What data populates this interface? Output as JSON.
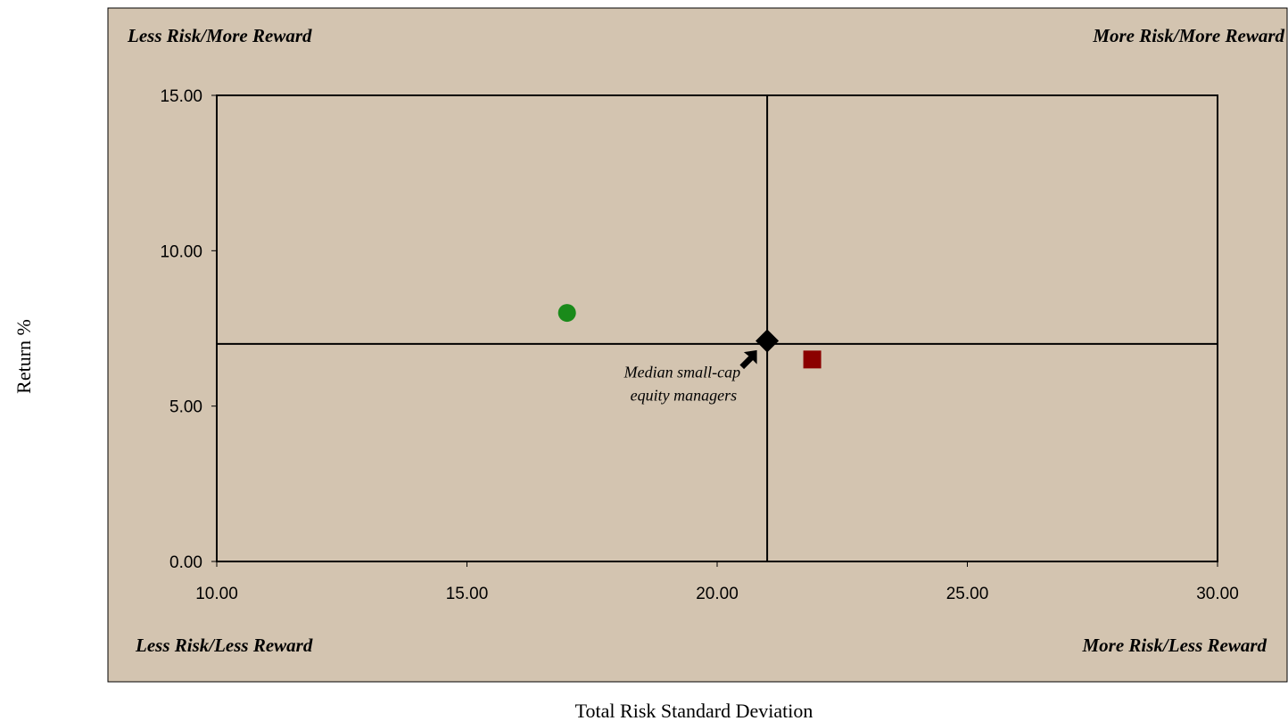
{
  "colors": {
    "background": "#d3c4b0",
    "green_point": "#1a8a1a",
    "red_point": "#8b0000",
    "median_point": "#000000"
  },
  "chart_data": {
    "type": "scatter",
    "xlabel": "Total Risk Standard Deviation",
    "ylabel": "Return %",
    "xlim": [
      10,
      30
    ],
    "ylim": [
      0,
      15
    ],
    "x_ticks": [
      "10.00",
      "15.00",
      "20.00",
      "25.00",
      "30.00"
    ],
    "y_ticks": [
      "0.00",
      "5.00",
      "10.00",
      "15.00"
    ],
    "grid": false,
    "quadrant_lines": {
      "x": 21,
      "y": 7.0
    },
    "quadrant_labels": {
      "top_left": "Less Risk/More Reward",
      "top_right": "More Risk/More Reward",
      "bottom_left": "Less Risk/Less Reward",
      "bottom_right": "More Risk/Less Reward"
    },
    "points": [
      {
        "x": 17.0,
        "y": 8.0,
        "marker": "circle",
        "color": "#1a8a1a"
      },
      {
        "x": 21.0,
        "y": 7.1,
        "marker": "diamond",
        "color": "#000000"
      },
      {
        "x": 21.9,
        "y": 6.5,
        "marker": "square",
        "color": "#8b0000"
      }
    ],
    "annotation": {
      "lines": [
        "Median small-cap",
        "equity managers"
      ],
      "target_x": 21.0,
      "target_y": 7.1
    }
  }
}
